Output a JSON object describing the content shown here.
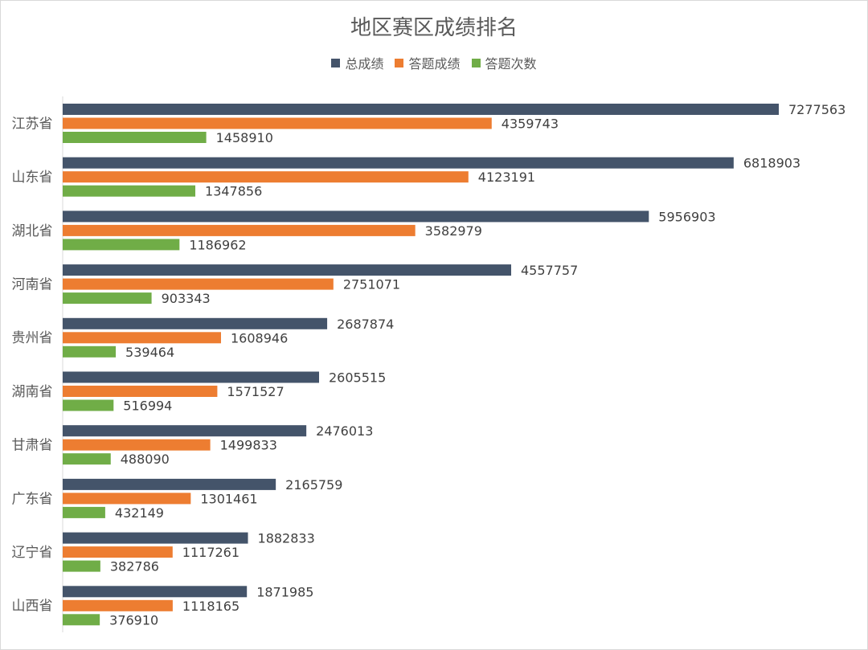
{
  "chart_data": {
    "type": "bar",
    "orientation": "horizontal",
    "title": "地区赛区成绩排名",
    "legend_position": "top",
    "grid": false,
    "xlim": [
      0,
      7500000
    ],
    "categories": [
      "江苏省",
      "山东省",
      "湖北省",
      "河南省",
      "贵州省",
      "湖南省",
      "甘肃省",
      "广东省",
      "辽宁省",
      "山西省"
    ],
    "series": [
      {
        "name": "总成绩",
        "color": "#44546a",
        "values": [
          7277563,
          6818903,
          5956903,
          4557757,
          2687874,
          2605515,
          2476013,
          2165759,
          1882833,
          1871985
        ]
      },
      {
        "name": "答题成绩",
        "color": "#ed7d31",
        "values": [
          4359743,
          4123191,
          3582979,
          2751071,
          1608946,
          1571527,
          1499833,
          1301461,
          1117261,
          1118165
        ]
      },
      {
        "name": "答题次数",
        "color": "#70ad47",
        "values": [
          1458910,
          1347856,
          1186962,
          903343,
          539464,
          516994,
          488090,
          432149,
          382786,
          376910
        ]
      }
    ]
  }
}
